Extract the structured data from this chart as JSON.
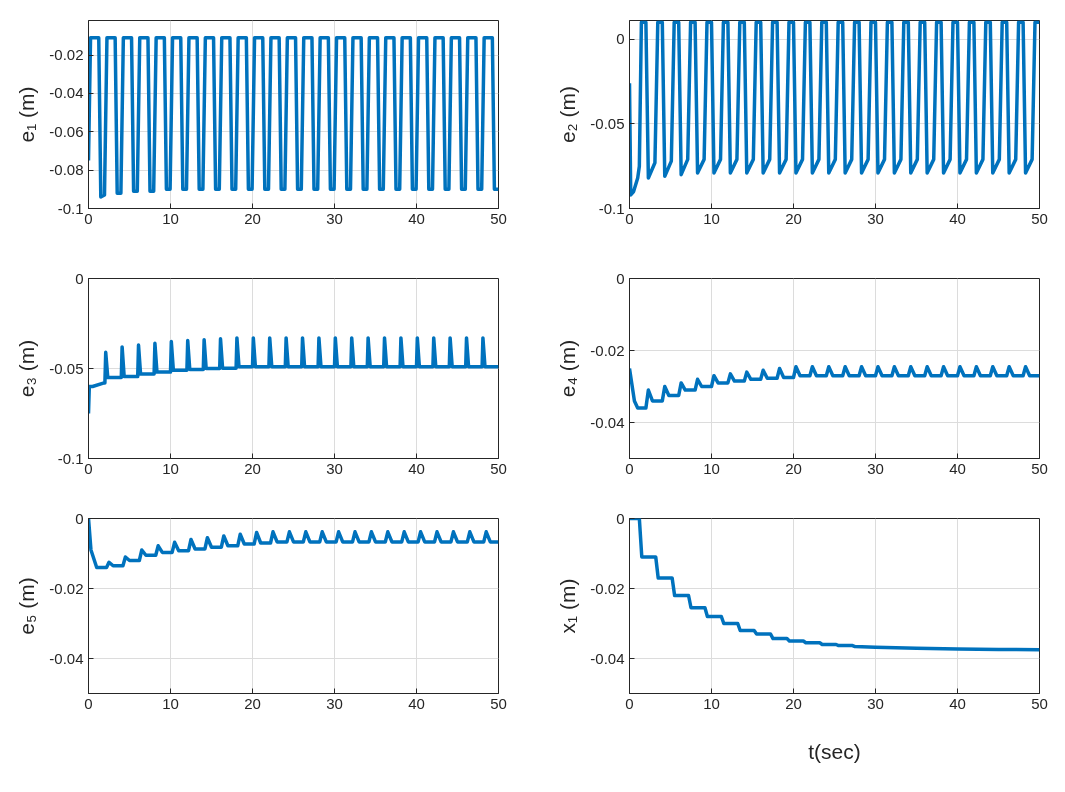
{
  "chart_data": [
    {
      "type": "line",
      "ylabel": "e₁ (m)",
      "xlim": [
        0,
        50
      ],
      "ylim": [
        -0.1,
        -0.002
      ],
      "xticks": [
        0,
        10,
        20,
        30,
        40,
        50
      ],
      "yticks": [
        -0.1,
        -0.08,
        -0.06,
        -0.04,
        -0.02
      ],
      "grid": true,
      "series": [
        {
          "color": "#0072bd",
          "x": [
            0,
            0.25,
            1.25,
            1.5,
            1.95,
            2.25,
            3.25,
            3.5,
            3.95,
            4.25,
            5.25,
            5.5,
            5.95,
            6.25,
            7.25,
            7.5,
            7.95,
            8.25,
            9.25,
            9.5,
            9.95,
            10.25,
            11.25,
            11.5,
            11.95,
            12.25,
            13.25,
            13.5,
            13.95,
            14.25,
            15.25,
            15.5,
            15.95,
            16.25,
            17.25,
            17.5,
            17.95,
            18.25,
            19.25,
            19.5,
            19.95,
            20.25,
            21.25,
            21.5,
            21.95,
            22.25,
            23.25,
            23.5,
            23.95,
            24.25,
            25.25,
            25.5,
            25.95,
            26.25,
            27.25,
            27.5,
            27.95,
            28.25,
            29.25,
            29.5,
            29.95,
            30.25,
            31.25,
            31.5,
            31.95,
            32.25,
            33.25,
            33.5,
            33.95,
            34.25,
            35.25,
            35.5,
            35.95,
            36.25,
            37.25,
            37.5,
            37.95,
            38.25,
            39.25,
            39.5,
            39.95,
            40.25,
            41.25,
            41.5,
            41.95,
            42.25,
            43.25,
            43.5,
            43.95,
            44.25,
            45.25,
            45.5,
            45.95,
            46.25,
            47.25,
            47.5,
            47.95,
            48.25,
            49.25,
            49.5,
            50
          ],
          "values": [
            -0.075,
            -0.011,
            -0.011,
            -0.094,
            -0.093,
            -0.011,
            -0.011,
            -0.092,
            -0.092,
            -0.011,
            -0.011,
            -0.091,
            -0.091,
            -0.011,
            -0.011,
            -0.091,
            -0.091,
            -0.011,
            -0.011,
            -0.09,
            -0.09,
            -0.011,
            -0.011,
            -0.09,
            -0.09,
            -0.011,
            -0.011,
            -0.09,
            -0.09,
            -0.011,
            -0.011,
            -0.09,
            -0.09,
            -0.011,
            -0.011,
            -0.09,
            -0.09,
            -0.011,
            -0.011,
            -0.09,
            -0.09,
            -0.011,
            -0.011,
            -0.09,
            -0.09,
            -0.011,
            -0.011,
            -0.09,
            -0.09,
            -0.011,
            -0.011,
            -0.09,
            -0.09,
            -0.011,
            -0.011,
            -0.09,
            -0.09,
            -0.011,
            -0.011,
            -0.09,
            -0.09,
            -0.011,
            -0.011,
            -0.09,
            -0.09,
            -0.011,
            -0.011,
            -0.09,
            -0.09,
            -0.011,
            -0.011,
            -0.09,
            -0.09,
            -0.011,
            -0.011,
            -0.09,
            -0.09,
            -0.011,
            -0.011,
            -0.09,
            -0.09,
            -0.011,
            -0.011,
            -0.09,
            -0.09,
            -0.011,
            -0.011,
            -0.09,
            -0.09,
            -0.011,
            -0.011,
            -0.09,
            -0.09,
            -0.011,
            -0.011,
            -0.09,
            -0.09,
            -0.011,
            -0.011,
            -0.09,
            -0.09
          ]
        }
      ]
    },
    {
      "type": "line",
      "ylabel": "e₂ (m)",
      "xlim": [
        0,
        50
      ],
      "ylim": [
        -0.1,
        0.011
      ],
      "xticks": [
        0,
        10,
        20,
        30,
        40,
        50
      ],
      "yticks": [
        -0.1,
        -0.05,
        0
      ],
      "grid": true,
      "series": [
        {
          "color": "#0072bd",
          "x": [
            0,
            0.15,
            0.5,
            1.0,
            1.2,
            1.45,
            2.0,
            2.3,
            3.1,
            3.45,
            4.0,
            4.3,
            5.1,
            5.45,
            6.0,
            6.3,
            7.1,
            7.45,
            8.0,
            8.3,
            9.1,
            9.45,
            10.0,
            10.3,
            11.1,
            11.45,
            12.0,
            12.3,
            13.1,
            13.45,
            14.0,
            14.3,
            15.1,
            15.45,
            16.0,
            16.3,
            17.1,
            17.45,
            18.0,
            18.3,
            19.1,
            19.45,
            20.0,
            20.3,
            21.1,
            21.45,
            22.0,
            22.3,
            23.1,
            23.45,
            24.0,
            24.3,
            25.1,
            25.45,
            26.0,
            26.3,
            27.1,
            27.45,
            28.0,
            28.3,
            29.1,
            29.45,
            30.0,
            30.3,
            31.1,
            31.45,
            32.0,
            32.3,
            33.1,
            33.45,
            34.0,
            34.3,
            35.1,
            35.45,
            36.0,
            36.3,
            37.1,
            37.45,
            38.0,
            38.3,
            39.1,
            39.45,
            40.0,
            40.3,
            41.1,
            41.45,
            42.0,
            42.3,
            43.1,
            43.45,
            44.0,
            44.3,
            45.1,
            45.45,
            46.0,
            46.3,
            47.1,
            47.45,
            48.0,
            48.3,
            49.1,
            49.45,
            50
          ],
          "values": [
            -0.026,
            -0.092,
            -0.09,
            -0.082,
            -0.075,
            0.01,
            0.01,
            -0.082,
            -0.073,
            0.01,
            0.01,
            -0.081,
            -0.072,
            0.01,
            0.01,
            -0.08,
            -0.071,
            0.01,
            0.01,
            -0.079,
            -0.071,
            0.01,
            0.01,
            -0.079,
            -0.071,
            0.01,
            0.01,
            -0.079,
            -0.071,
            0.01,
            0.01,
            -0.079,
            -0.071,
            0.01,
            0.01,
            -0.079,
            -0.071,
            0.01,
            0.01,
            -0.079,
            -0.071,
            0.01,
            0.01,
            -0.079,
            -0.071,
            0.01,
            0.01,
            -0.079,
            -0.071,
            0.01,
            0.01,
            -0.079,
            -0.071,
            0.01,
            0.01,
            -0.079,
            -0.071,
            0.01,
            0.01,
            -0.079,
            -0.071,
            0.01,
            0.01,
            -0.079,
            -0.071,
            0.01,
            0.01,
            -0.079,
            -0.071,
            0.01,
            0.01,
            -0.079,
            -0.071,
            0.01,
            0.01,
            -0.079,
            -0.071,
            0.01,
            0.01,
            -0.079,
            -0.071,
            0.01,
            0.01,
            -0.079,
            -0.071,
            0.01,
            0.01,
            -0.079,
            -0.071,
            0.01,
            0.01,
            -0.079,
            -0.071,
            0.01,
            0.01,
            -0.079,
            -0.071,
            0.01,
            0.01,
            -0.079,
            -0.071,
            0.01,
            0.01
          ]
        }
      ]
    },
    {
      "type": "line",
      "ylabel": "e₃ (m)",
      "xlim": [
        0,
        50
      ],
      "ylim": [
        -0.1,
        0
      ],
      "xticks": [
        0,
        10,
        20,
        30,
        40,
        50
      ],
      "yticks": [
        -0.1,
        -0.05,
        0
      ],
      "grid": true,
      "series": [
        {
          "color": "#0072bd",
          "x": [
            0,
            0.1,
            0.5,
            1.9,
            2,
            2.1,
            2.35,
            4,
            4.1,
            4.35,
            6,
            6.1,
            6.35,
            8,
            8.1,
            8.35,
            10,
            10.1,
            10.35,
            12,
            12.1,
            12.35,
            14,
            14.1,
            14.35,
            16,
            16.1,
            16.35,
            18,
            18.1,
            18.35,
            20,
            20.1,
            20.35,
            22,
            22.1,
            22.35,
            24,
            24.1,
            24.35,
            26,
            26.1,
            26.35,
            28,
            28.1,
            28.35,
            30,
            30.1,
            30.35,
            32,
            32.1,
            32.35,
            34,
            34.1,
            34.35,
            36,
            36.1,
            36.35,
            38,
            38.1,
            38.35,
            40,
            40.1,
            40.35,
            42,
            42.1,
            42.35,
            44,
            44.1,
            44.35,
            46,
            46.1,
            46.35,
            48,
            48.1,
            48.35,
            50
          ],
          "values": [
            -0.075,
            -0.06,
            -0.06,
            -0.058,
            -0.058,
            -0.041,
            -0.055,
            -0.055,
            -0.038,
            -0.0545,
            -0.0545,
            -0.037,
            -0.053,
            -0.053,
            -0.036,
            -0.052,
            -0.052,
            -0.035,
            -0.051,
            -0.051,
            -0.0345,
            -0.0505,
            -0.0505,
            -0.034,
            -0.05,
            -0.05,
            -0.0335,
            -0.0498,
            -0.0498,
            -0.033,
            -0.049,
            -0.049,
            -0.033,
            -0.049,
            -0.049,
            -0.033,
            -0.049,
            -0.049,
            -0.033,
            -0.049,
            -0.049,
            -0.033,
            -0.049,
            -0.049,
            -0.033,
            -0.049,
            -0.049,
            -0.033,
            -0.049,
            -0.049,
            -0.033,
            -0.049,
            -0.049,
            -0.033,
            -0.049,
            -0.049,
            -0.033,
            -0.049,
            -0.049,
            -0.033,
            -0.049,
            -0.049,
            -0.033,
            -0.049,
            -0.049,
            -0.033,
            -0.049,
            -0.049,
            -0.033,
            -0.049,
            -0.049,
            -0.033,
            -0.049,
            -0.049,
            -0.033,
            -0.049,
            -0.049
          ]
        }
      ]
    },
    {
      "type": "line",
      "ylabel": "e₄ (m)",
      "xlim": [
        0,
        50
      ],
      "ylim": [
        -0.05,
        0
      ],
      "xticks": [
        0,
        10,
        20,
        30,
        40,
        50
      ],
      "yticks": [
        -0.04,
        -0.02,
        0
      ],
      "grid": true,
      "series": [
        {
          "color": "#0072bd",
          "x": [
            0,
            0.6,
            1.0,
            2.0,
            2.3,
            2.8,
            4.0,
            4.3,
            4.8,
            6.0,
            6.3,
            6.8,
            8.0,
            8.3,
            8.8,
            10.0,
            10.3,
            10.8,
            12.0,
            12.3,
            12.8,
            14.0,
            14.3,
            14.8,
            16.0,
            16.3,
            16.8,
            18.0,
            18.3,
            18.8,
            20.0,
            20.3,
            20.8,
            22.0,
            22.3,
            22.8,
            24.0,
            24.3,
            24.8,
            26.0,
            26.3,
            26.8,
            28.0,
            28.3,
            28.8,
            30.0,
            30.3,
            30.8,
            32.0,
            32.3,
            32.8,
            34.0,
            34.3,
            34.8,
            36.0,
            36.3,
            36.8,
            38.0,
            38.3,
            38.8,
            40.0,
            40.3,
            40.8,
            42.0,
            42.3,
            42.8,
            44.0,
            44.3,
            44.8,
            46.0,
            46.3,
            46.8,
            48.0,
            48.3,
            48.8,
            50
          ],
          "values": [
            -0.025,
            -0.034,
            -0.036,
            -0.036,
            -0.031,
            -0.034,
            -0.034,
            -0.03,
            -0.0325,
            -0.0325,
            -0.029,
            -0.031,
            -0.031,
            -0.028,
            -0.03,
            -0.03,
            -0.027,
            -0.029,
            -0.029,
            -0.0265,
            -0.0285,
            -0.0285,
            -0.026,
            -0.028,
            -0.028,
            -0.0255,
            -0.0277,
            -0.0277,
            -0.025,
            -0.0275,
            -0.0275,
            -0.0245,
            -0.027,
            -0.027,
            -0.0245,
            -0.027,
            -0.027,
            -0.0245,
            -0.027,
            -0.027,
            -0.0245,
            -0.027,
            -0.027,
            -0.0245,
            -0.027,
            -0.027,
            -0.0245,
            -0.027,
            -0.027,
            -0.0245,
            -0.027,
            -0.027,
            -0.0245,
            -0.027,
            -0.027,
            -0.0245,
            -0.027,
            -0.027,
            -0.0245,
            -0.027,
            -0.027,
            -0.0245,
            -0.027,
            -0.027,
            -0.0245,
            -0.027,
            -0.027,
            -0.0245,
            -0.027,
            -0.027,
            -0.0245,
            -0.027,
            -0.027,
            -0.0245,
            -0.027,
            -0.027
          ]
        }
      ]
    },
    {
      "type": "line",
      "ylabel": "e₅ (m)",
      "xlim": [
        0,
        50
      ],
      "ylim": [
        -0.05,
        0
      ],
      "xticks": [
        0,
        10,
        20,
        30,
        40,
        50
      ],
      "yticks": [
        -0.04,
        -0.02,
        0
      ],
      "grid": true,
      "series": [
        {
          "color": "#0072bd",
          "x": [
            0,
            0.3,
            1.0,
            2.2,
            2.5,
            3.0,
            4.2,
            4.5,
            5.0,
            6.2,
            6.5,
            7.0,
            8.2,
            8.5,
            9.0,
            10.2,
            10.5,
            11.0,
            12.2,
            12.5,
            13.0,
            14.2,
            14.5,
            15.0,
            16.2,
            16.5,
            17.0,
            18.2,
            18.5,
            19.0,
            20.2,
            20.5,
            21.0,
            22.2,
            22.5,
            23.0,
            24.2,
            24.5,
            25.0,
            26.2,
            26.5,
            27.0,
            28.2,
            28.5,
            29.0,
            30.2,
            30.5,
            31.0,
            32.2,
            32.5,
            33.0,
            34.2,
            34.5,
            35.0,
            36.2,
            36.5,
            37.0,
            38.2,
            38.5,
            39.0,
            40.2,
            40.5,
            41.0,
            42.2,
            42.5,
            43.0,
            44.2,
            44.5,
            45.0,
            46.2,
            46.5,
            47.0,
            48.2,
            48.5,
            49.0,
            50
          ],
          "values": [
            0,
            -0.009,
            -0.014,
            -0.014,
            -0.0125,
            -0.0135,
            -0.0135,
            -0.011,
            -0.012,
            -0.012,
            -0.009,
            -0.0105,
            -0.0105,
            -0.0078,
            -0.0097,
            -0.0097,
            -0.0068,
            -0.0092,
            -0.0092,
            -0.006,
            -0.0087,
            -0.0087,
            -0.0055,
            -0.0082,
            -0.0082,
            -0.005,
            -0.0078,
            -0.0078,
            -0.0045,
            -0.0073,
            -0.0073,
            -0.004,
            -0.007,
            -0.007,
            -0.0038,
            -0.0067,
            -0.0067,
            -0.0038,
            -0.0067,
            -0.0067,
            -0.0038,
            -0.0067,
            -0.0067,
            -0.0038,
            -0.0067,
            -0.0067,
            -0.0038,
            -0.0067,
            -0.0067,
            -0.0038,
            -0.0067,
            -0.0067,
            -0.0038,
            -0.0067,
            -0.0067,
            -0.0038,
            -0.0067,
            -0.0067,
            -0.0038,
            -0.0067,
            -0.0067,
            -0.0038,
            -0.0067,
            -0.0067,
            -0.0038,
            -0.0067,
            -0.0067,
            -0.0038,
            -0.0067,
            -0.0067,
            -0.0038,
            -0.0067,
            -0.0067,
            -0.0038,
            -0.0067,
            -0.0067
          ]
        }
      ]
    },
    {
      "type": "line",
      "xlabel": "t(sec)",
      "ylabel": "x₁ (m)",
      "xlim": [
        0,
        50
      ],
      "ylim": [
        -0.05,
        0
      ],
      "xticks": [
        0,
        10,
        20,
        30,
        40,
        50
      ],
      "yticks": [
        -0.04,
        -0.02,
        0
      ],
      "grid": true,
      "series": [
        {
          "color": "#0072bd",
          "x": [
            0,
            1.2,
            1.5,
            3.2,
            3.5,
            5.2,
            5.5,
            7.2,
            7.5,
            9.2,
            9.5,
            11.2,
            11.5,
            13.2,
            13.5,
            15.2,
            15.5,
            17.2,
            17.5,
            19.2,
            19.5,
            21.2,
            21.5,
            23.2,
            23.5,
            25.2,
            25.5,
            27.2,
            27.5,
            30,
            35,
            40,
            45,
            50
          ],
          "values": [
            0,
            0,
            -0.011,
            -0.011,
            -0.017,
            -0.017,
            -0.022,
            -0.022,
            -0.0255,
            -0.0255,
            -0.028,
            -0.028,
            -0.03,
            -0.03,
            -0.032,
            -0.032,
            -0.033,
            -0.033,
            -0.0343,
            -0.0343,
            -0.035,
            -0.035,
            -0.0355,
            -0.0355,
            -0.036,
            -0.036,
            -0.0363,
            -0.0363,
            -0.0366,
            -0.0368,
            -0.0371,
            -0.0373,
            -0.0374,
            -0.0375
          ]
        }
      ]
    }
  ]
}
